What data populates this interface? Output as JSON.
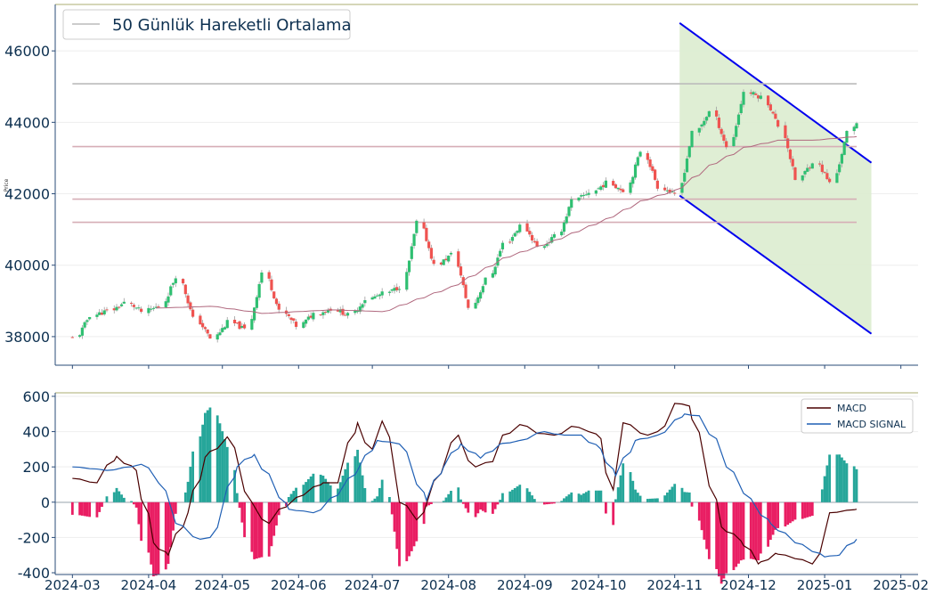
{
  "chart_data": [
    {
      "type": "candlestick",
      "panel": "price",
      "ylabel": "Price",
      "ylim": [
        37200,
        47300
      ],
      "yticks": [
        38000,
        40000,
        42000,
        44000,
        46000
      ],
      "legend": {
        "position": "top-left",
        "entries": [
          "50 Günlük Hareketli Ortalama"
        ]
      },
      "moving_average_label": "50 Günlük Hareketli Ortalama",
      "anchors": {
        "close": [
          [
            0,
            37950
          ],
          [
            5,
            38600
          ],
          [
            10,
            38720
          ],
          [
            15,
            38950
          ],
          [
            20,
            38700
          ],
          [
            25,
            38850
          ],
          [
            30,
            39700
          ],
          [
            35,
            38500
          ],
          [
            40,
            37950
          ],
          [
            45,
            38400
          ],
          [
            50,
            38200
          ],
          [
            55,
            39800
          ],
          [
            60,
            38700
          ],
          [
            65,
            38300
          ],
          [
            70,
            38650
          ],
          [
            75,
            38780
          ],
          [
            80,
            38600
          ],
          [
            85,
            39050
          ],
          [
            90,
            39200
          ],
          [
            95,
            39400
          ],
          [
            100,
            41200
          ],
          [
            105,
            40000
          ],
          [
            110,
            40300
          ],
          [
            115,
            38800
          ],
          [
            120,
            39600
          ],
          [
            125,
            40600
          ],
          [
            130,
            41100
          ],
          [
            135,
            40500
          ],
          [
            140,
            40800
          ],
          [
            145,
            41800
          ],
          [
            150,
            42050
          ],
          [
            155,
            42300
          ],
          [
            160,
            42100
          ],
          [
            165,
            43200
          ],
          [
            170,
            42200
          ],
          [
            175,
            41950
          ],
          [
            180,
            43700
          ],
          [
            185,
            44300
          ],
          [
            190,
            43300
          ],
          [
            195,
            44850
          ],
          [
            200,
            44700
          ],
          [
            205,
            43900
          ],
          [
            210,
            42400
          ],
          [
            215,
            42900
          ],
          [
            220,
            42300
          ],
          [
            225,
            43700
          ],
          [
            227,
            44000
          ]
        ],
        "ma": [
          [
            24,
            38800
          ],
          [
            40,
            38850
          ],
          [
            55,
            38650
          ],
          [
            75,
            38750
          ],
          [
            90,
            38700
          ],
          [
            110,
            39400
          ],
          [
            125,
            40200
          ],
          [
            140,
            40700
          ],
          [
            155,
            41300
          ],
          [
            165,
            41800
          ],
          [
            175,
            42100
          ],
          [
            185,
            42800
          ],
          [
            195,
            43300
          ],
          [
            205,
            43500
          ],
          [
            215,
            43500
          ],
          [
            227,
            43600
          ]
        ]
      },
      "horizontal_levels": [
        45080,
        43320,
        41850,
        41200
      ],
      "channel": {
        "upper": [
          [
            "2024-11-03",
            46780
          ],
          [
            "2025-01-20",
            42870
          ]
        ],
        "lower": [
          [
            "2024-11-03",
            41950
          ],
          [
            "2025-01-20",
            38080
          ]
        ]
      }
    },
    {
      "type": "line+bar",
      "panel": "macd",
      "ylim": [
        -410,
        620
      ],
      "yticks": [
        -400,
        -200,
        0,
        200,
        400,
        600
      ],
      "xticks": [
        "2024-03",
        "2024-04",
        "2024-05",
        "2024-06",
        "2024-07",
        "2024-08",
        "2024-09",
        "2024-10",
        "2024-11",
        "2024-12",
        "2025-01",
        "2025-02"
      ],
      "legend": {
        "position": "top-right",
        "entries": [
          "MACD",
          "MACD SIGNAL"
        ]
      },
      "series": [
        {
          "name": "MACD",
          "color": "#4a0000",
          "anchors": [
            [
              0,
              135
            ],
            [
              6,
              110
            ],
            [
              12,
              260
            ],
            [
              18,
              180
            ],
            [
              23,
              -230
            ],
            [
              27,
              -300
            ],
            [
              33,
              -60
            ],
            [
              38,
              255
            ],
            [
              45,
              370
            ],
            [
              51,
              0
            ],
            [
              56,
              -120
            ],
            [
              60,
              -40
            ],
            [
              66,
              40
            ],
            [
              72,
              110
            ],
            [
              76,
              110
            ],
            [
              82,
              450
            ],
            [
              86,
              300
            ],
            [
              90,
              460
            ],
            [
              95,
              0
            ],
            [
              100,
              -100
            ],
            [
              105,
              120
            ],
            [
              111,
              380
            ],
            [
              116,
              200
            ],
            [
              121,
              230
            ],
            [
              125,
              380
            ],
            [
              130,
              440
            ],
            [
              135,
              390
            ],
            [
              140,
              380
            ],
            [
              145,
              430
            ],
            [
              150,
              400
            ],
            [
              153,
              360
            ],
            [
              156,
              70
            ],
            [
              160,
              450
            ],
            [
              166,
              380
            ],
            [
              170,
              400
            ],
            [
              175,
              560
            ],
            [
              179,
              545
            ],
            [
              184,
              170
            ],
            [
              188,
              -140
            ],
            [
              194,
              -220
            ],
            [
              199,
              -350
            ],
            [
              204,
              -290
            ],
            [
              210,
              -320
            ],
            [
              215,
              -350
            ],
            [
              220,
              -60
            ],
            [
              227,
              -40
            ]
          ]
        },
        {
          "name": "MACD SIGNAL",
          "color": "#1f5fb4",
          "anchors": [
            [
              0,
              200
            ],
            [
              10,
              180
            ],
            [
              20,
              215
            ],
            [
              25,
              110
            ],
            [
              30,
              -120
            ],
            [
              36,
              -210
            ],
            [
              40,
              -200
            ],
            [
              47,
              200
            ],
            [
              52,
              270
            ],
            [
              56,
              160
            ],
            [
              62,
              -40
            ],
            [
              70,
              -60
            ],
            [
              76,
              40
            ],
            [
              82,
              180
            ],
            [
              88,
              350
            ],
            [
              95,
              330
            ],
            [
              102,
              10
            ],
            [
              107,
              200
            ],
            [
              112,
              330
            ],
            [
              118,
              250
            ],
            [
              124,
              330
            ],
            [
              130,
              350
            ],
            [
              136,
              400
            ],
            [
              142,
              380
            ],
            [
              147,
              380
            ],
            [
              153,
              300
            ],
            [
              157,
              150
            ],
            [
              163,
              350
            ],
            [
              170,
              380
            ],
            [
              177,
              500
            ],
            [
              181,
              490
            ],
            [
              186,
              360
            ],
            [
              190,
              200
            ],
            [
              196,
              20
            ],
            [
              202,
              -120
            ],
            [
              210,
              -230
            ],
            [
              218,
              -310
            ],
            [
              222,
              -300
            ],
            [
              227,
              -210
            ]
          ]
        }
      ],
      "histogram_colors": {
        "positive": "#26a69a",
        "negative": "#e91e63"
      }
    }
  ]
}
